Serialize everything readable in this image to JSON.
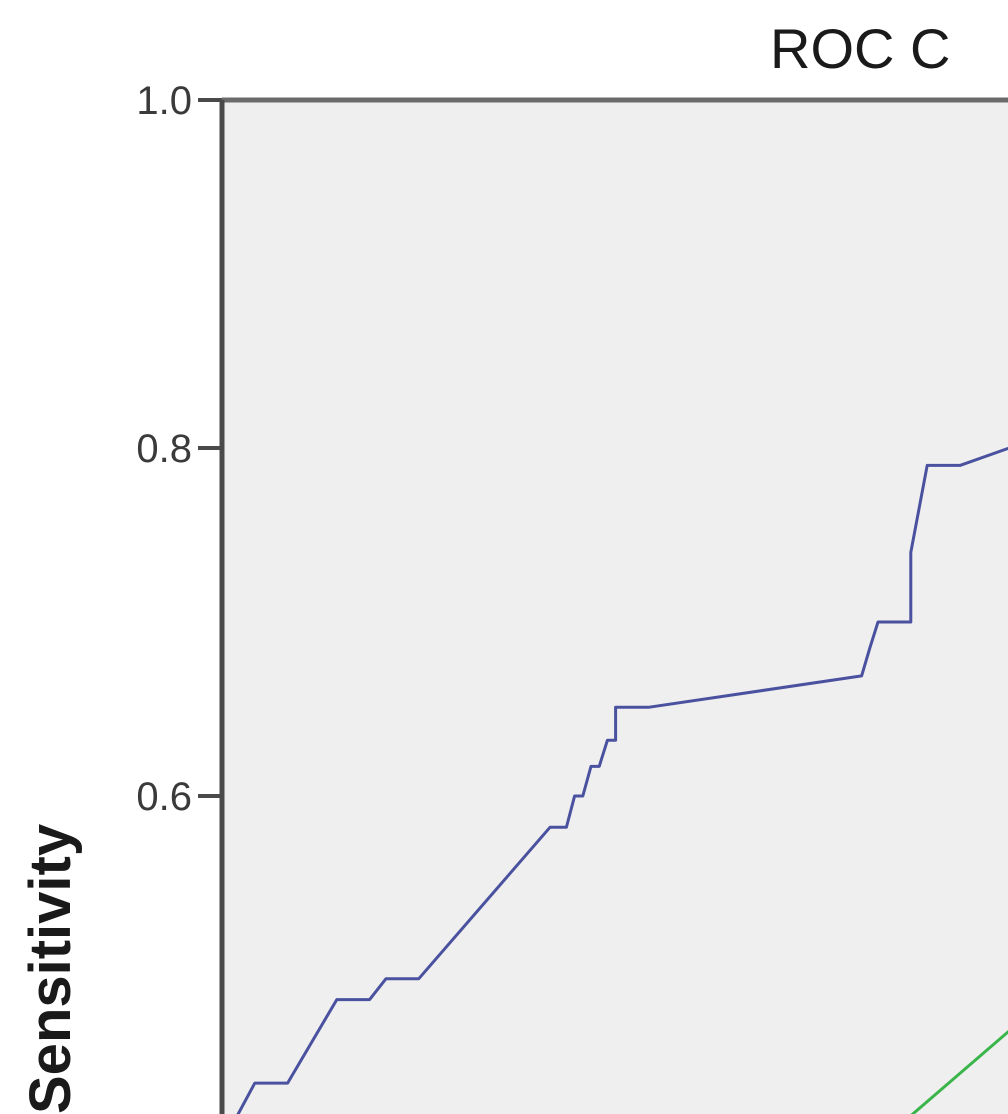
{
  "chart_data": {
    "type": "line",
    "title": "ROC C",
    "ylabel": "Sensitivity",
    "ylim": [
      0.4,
      1.0
    ],
    "yticks": [
      {
        "value": 1.0,
        "label": "1.0"
      },
      {
        "value": 0.8,
        "label": "0.8"
      },
      {
        "value": 0.6,
        "label": "0.6"
      }
    ],
    "grid": false,
    "series": [
      {
        "color": "#4a52a0",
        "x": [
          0.0,
          0.02,
          0.04,
          0.07,
          0.09,
          0.1,
          0.12,
          0.2,
          0.21,
          0.215,
          0.22,
          0.225,
          0.23,
          0.235,
          0.24,
          0.24,
          0.26,
          0.26,
          0.39,
          0.395,
          0.4,
          0.4,
          0.42,
          0.42,
          0.43,
          0.45,
          0.48
        ],
        "y": [
          0.4,
          0.435,
          0.435,
          0.483,
          0.483,
          0.495,
          0.495,
          0.582,
          0.582,
          0.6,
          0.6,
          0.617,
          0.617,
          0.632,
          0.632,
          0.651,
          0.651,
          0.651,
          0.669,
          0.685,
          0.7,
          0.7,
          0.7,
          0.74,
          0.79,
          0.79,
          0.8
        ]
      },
      {
        "color": "#3ab54a",
        "x": [
          0.4,
          0.48
        ],
        "y": [
          0.4,
          0.465
        ]
      }
    ]
  }
}
